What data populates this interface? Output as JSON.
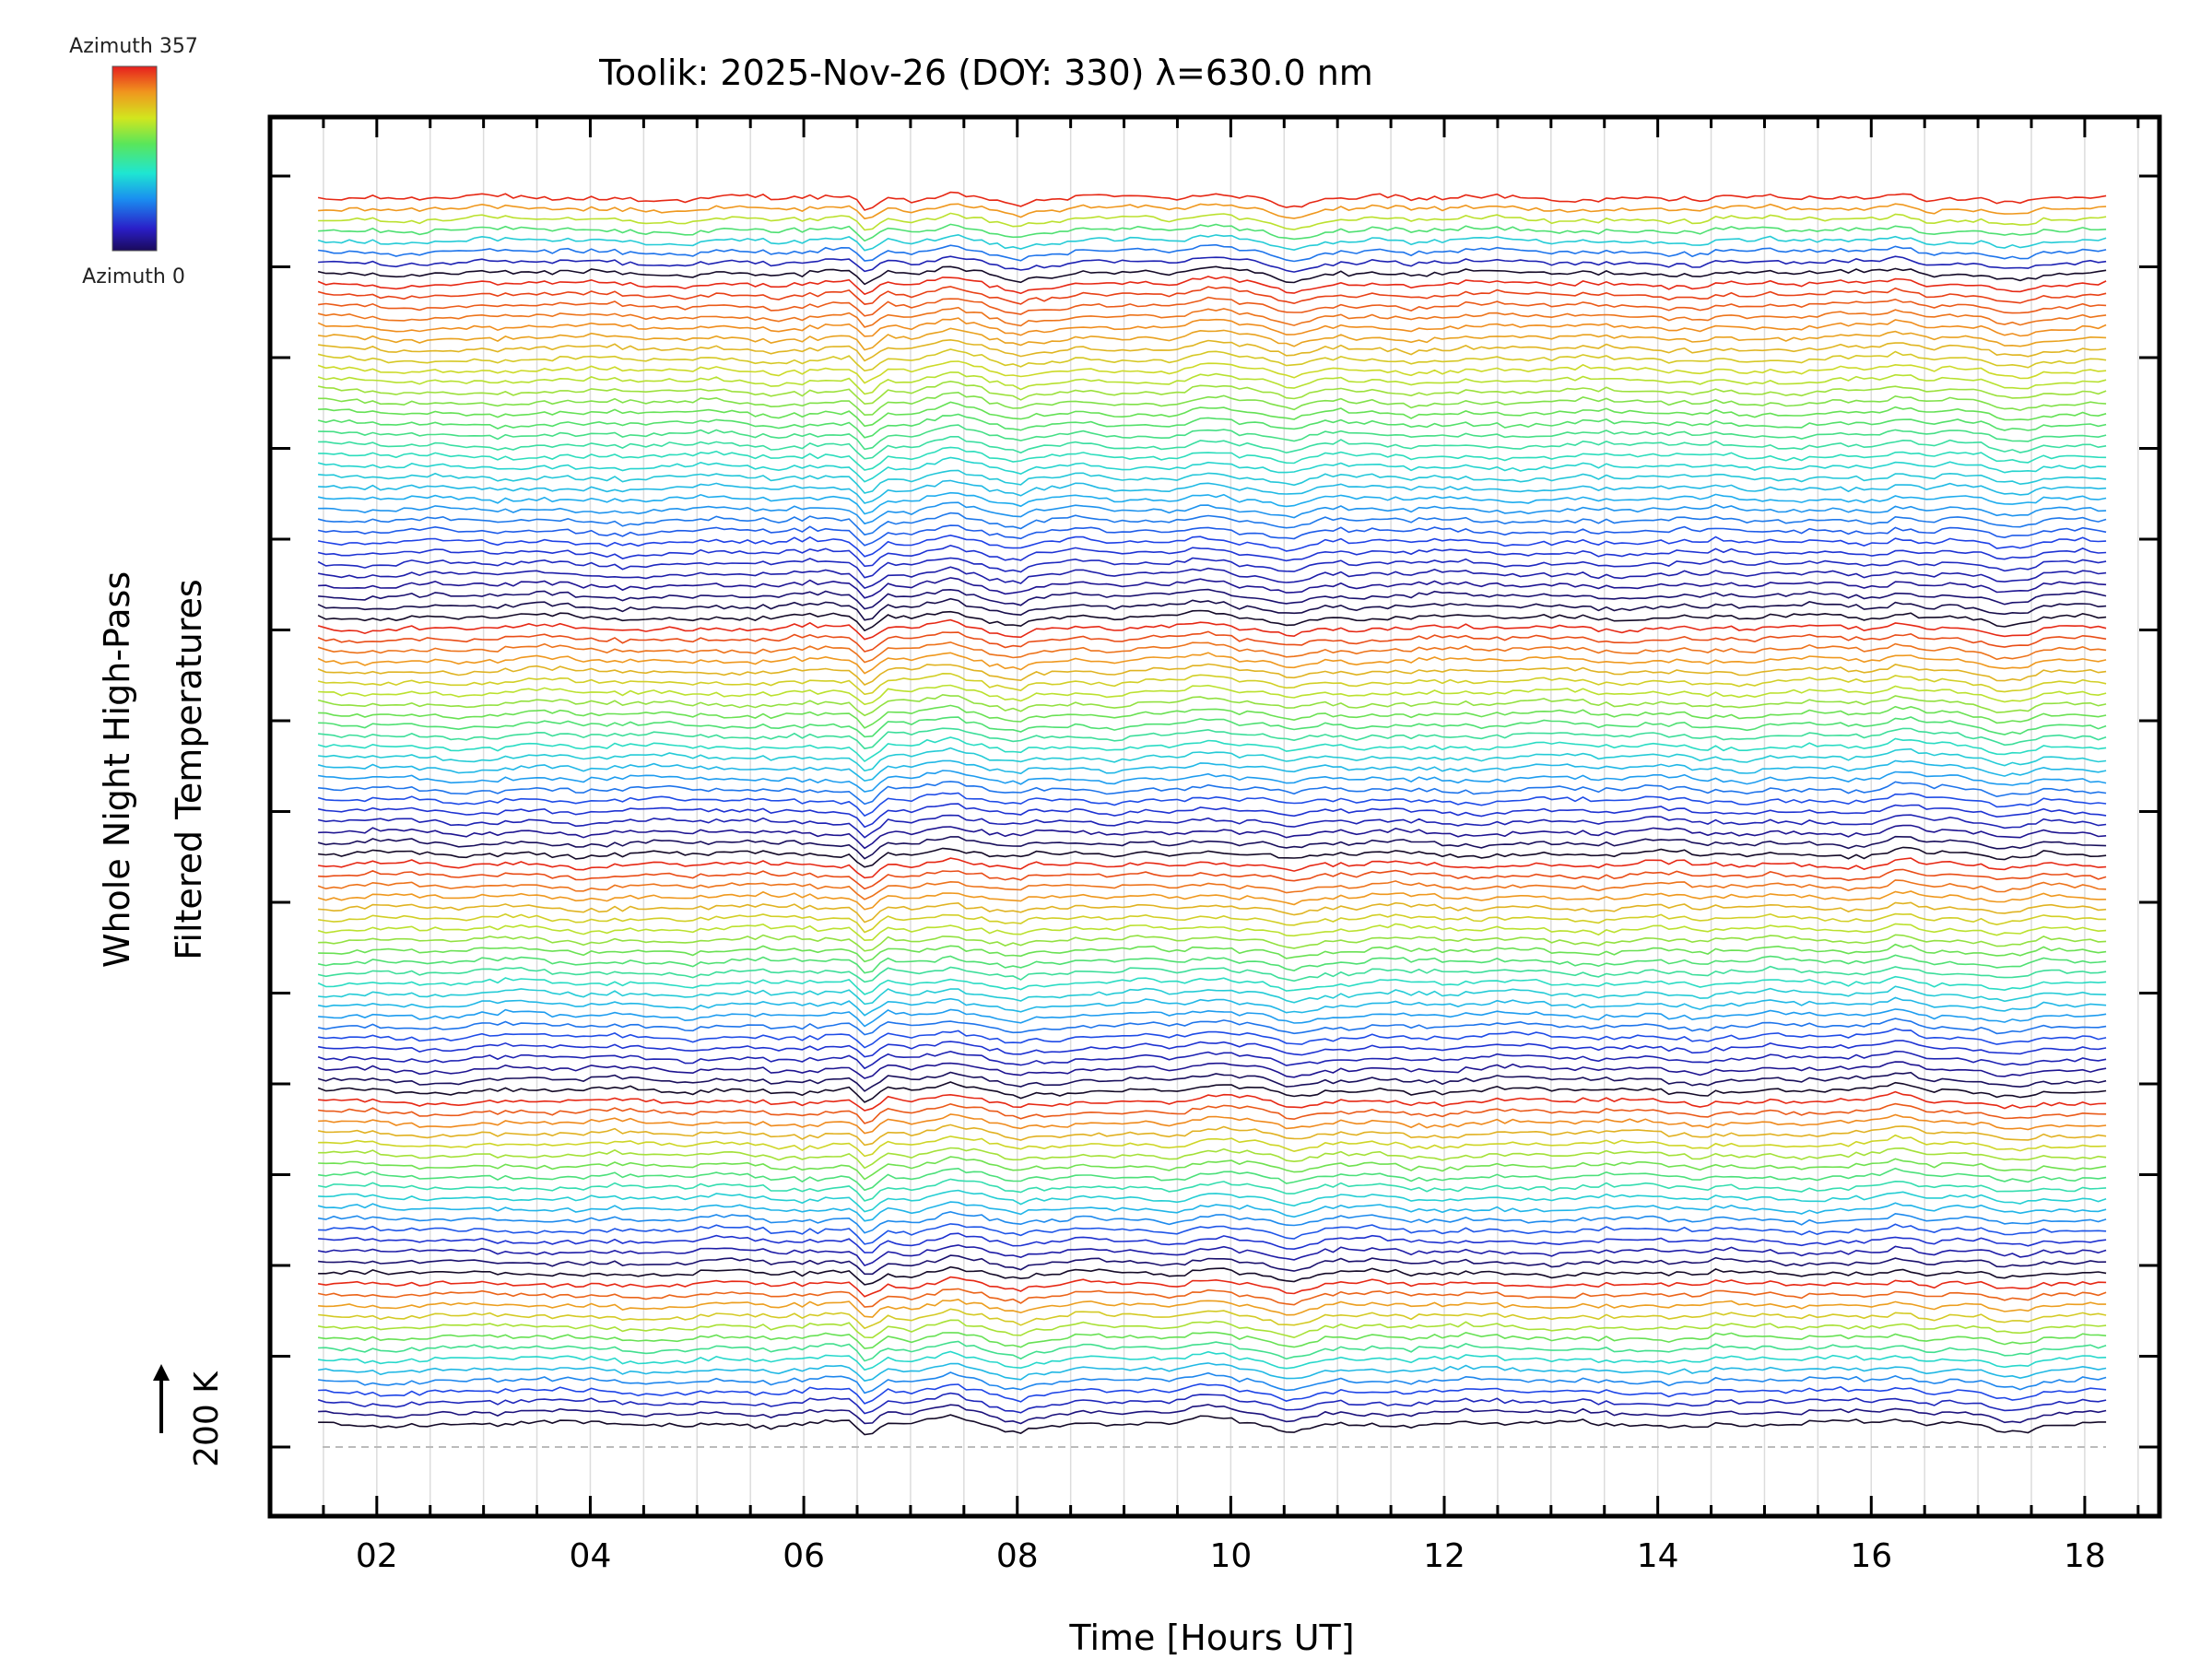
{
  "chart_data": {
    "type": "line",
    "title": "Toolik: 2025-Nov-26 (DOY: 330) λ=630.0 nm",
    "xlabel": "Time [Hours UT]",
    "ylabel_line1": "Whole Night High-Pass",
    "ylabel_line2": "Filtered Temperatures",
    "xlim": [
      1.0,
      18.7
    ],
    "x_tick_labels": [
      "02",
      "04",
      "06",
      "08",
      "10",
      "12",
      "14",
      "16",
      "18"
    ],
    "x_tick_values": [
      2,
      4,
      6,
      8,
      10,
      12,
      14,
      16,
      18
    ],
    "x_data_range": [
      1.45,
      18.2
    ],
    "grid": true,
    "scale_bar_label": "200 K",
    "colorbar": {
      "top_label": "Azimuth 357",
      "bottom_label": "Azimuth 0",
      "colormap": "rainbow"
    },
    "stacked_traces": {
      "count": 115,
      "azimuth_cycle_lengths": [
        14,
        17,
        22,
        22,
        32,
        8
      ],
      "notable_event_hours": [
        6.6,
        7.35,
        8.0,
        9.8,
        10.55,
        16.3,
        17.3
      ]
    }
  }
}
